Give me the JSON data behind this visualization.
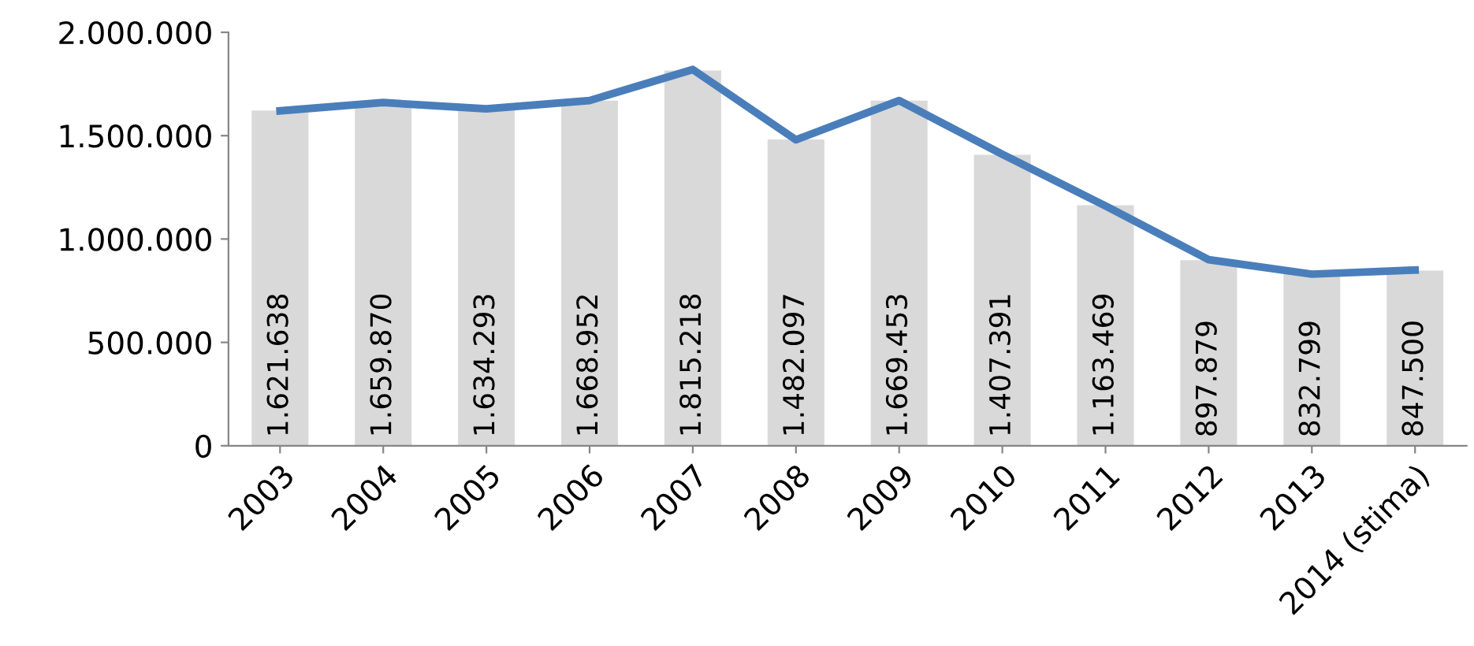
{
  "chart_data": {
    "type": "bar",
    "categories": [
      "2003",
      "2004",
      "2005",
      "2006",
      "2007",
      "2008",
      "2009",
      "2010",
      "2011",
      "2012",
      "2013",
      "2014 (stima)"
    ],
    "series": [
      {
        "color": "#d9d9d9",
        "values": [
          1621638,
          1659870,
          1634293,
          1668952,
          1815218,
          1482097,
          1669453,
          1407391,
          1163469,
          897879,
          832799,
          847500
        ],
        "value_labels": [
          "1.621.638",
          "1.659.870",
          "1.634.293",
          "1.668.952",
          "1.815.218",
          "1.482.097",
          "1.669.453",
          "1.407.391",
          "1.163.469",
          "897.879",
          "832.799",
          "847.500"
        ]
      },
      {
        "type": "line",
        "color": "#4a7ebb",
        "values": [
          1620000,
          1660000,
          1630000,
          1670000,
          1820000,
          1480000,
          1670000,
          1410000,
          1160000,
          900000,
          830000,
          850000
        ]
      }
    ],
    "ylim": [
      0,
      2000000
    ],
    "yticks": [
      0,
      {
        "value": 500000,
        "label": "500.000"
      },
      {
        "value": 1000000,
        "label": "1.000.000"
      },
      {
        "value": 1500000,
        "label": "1.500.000"
      },
      {
        "value": 2000000,
        "label": "2.000.000"
      }
    ],
    "grid": false,
    "marker": "none",
    "line_style": "solid"
  }
}
